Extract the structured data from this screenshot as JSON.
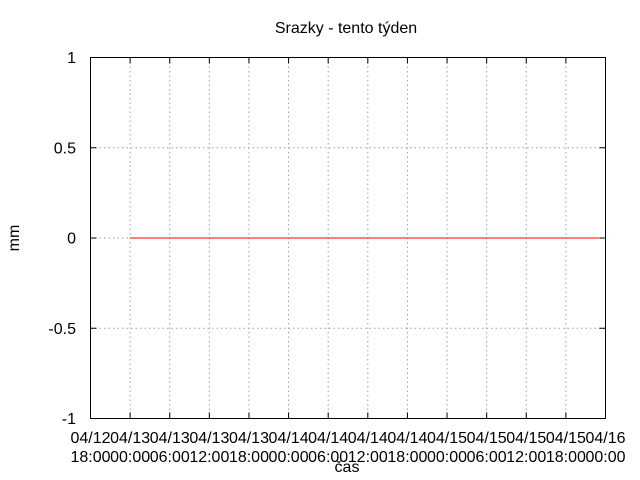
{
  "chart_data": {
    "type": "line",
    "title": "Srazky - tento týden",
    "xlabel": "čas",
    "ylabel": "mm",
    "ylim": [
      -1,
      1
    ],
    "yticks": [
      "-1",
      "-0.5",
      "0",
      "0.5",
      "1"
    ],
    "y_tick_values": [
      -1,
      -0.5,
      0,
      0.5,
      1
    ],
    "xlim": [
      "04/12 18:00",
      "04/16 00:00"
    ],
    "xticks": [
      [
        "04/12",
        "18:00"
      ],
      [
        "04/13",
        "00:00"
      ],
      [
        "04/13",
        "06:00"
      ],
      [
        "04/13",
        "12:00"
      ],
      [
        "04/13",
        "18:00"
      ],
      [
        "04/14",
        "00:00"
      ],
      [
        "04/14",
        "06:00"
      ],
      [
        "04/14",
        "12:00"
      ],
      [
        "04/14",
        "18:00"
      ],
      [
        "04/15",
        "00:00"
      ],
      [
        "04/15",
        "06:00"
      ],
      [
        "04/15",
        "12:00"
      ],
      [
        "04/15",
        "18:00"
      ],
      [
        "04/16",
        "00:00"
      ]
    ],
    "grid": true,
    "series": [
      {
        "color": "#ff0000",
        "x": [
          "04/13 00:00",
          "04/15 23:00"
        ],
        "y": [
          0,
          0
        ]
      }
    ]
  }
}
